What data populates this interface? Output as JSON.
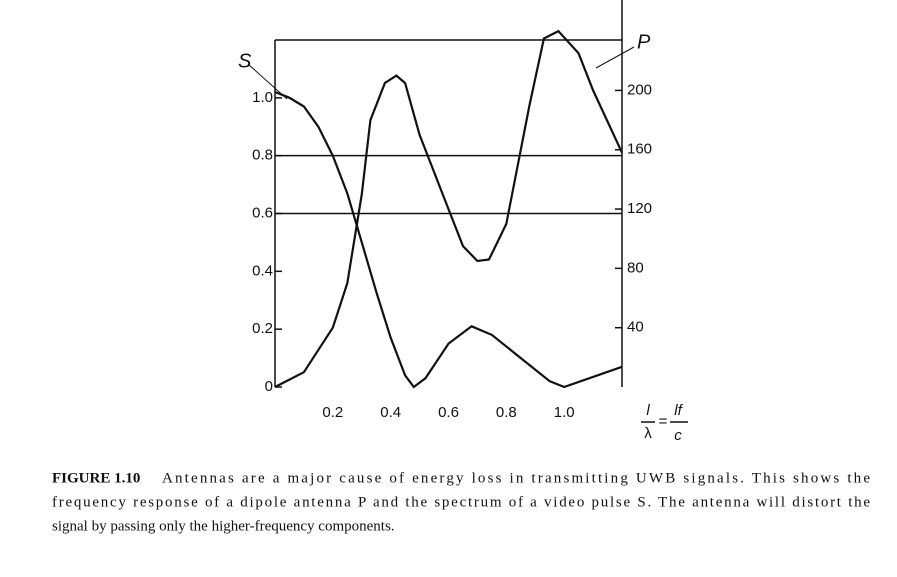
{
  "chart_data": {
    "type": "line",
    "xlim": [
      0,
      1.2
    ],
    "xticks": [
      0.2,
      0.4,
      0.6,
      0.8,
      {
        "value": 1,
        "label": "1.0"
      }
    ],
    "ylim": [
      0,
      1.2
    ],
    "yticks": [
      0,
      0.2,
      0.4,
      0.6,
      0.8,
      {
        "value": 1,
        "label": "1.0"
      }
    ],
    "y2lim": [
      0,
      234
    ],
    "y2ticks": [
      40,
      80,
      120,
      160,
      200
    ],
    "grid_y": [
      0.6,
      0.8
    ],
    "xlabel_parts": [
      "l",
      "λ",
      "=",
      "lf",
      "c"
    ],
    "series": [
      {
        "name": "S",
        "color": "#111111",
        "x": [
          0,
          0.05,
          0.1,
          0.15,
          0.2,
          0.25,
          0.3,
          0.35,
          0.4,
          0.45,
          0.48,
          0.52,
          0.6,
          0.68,
          0.75,
          0.85,
          0.95,
          1.0,
          1.2
        ],
        "values": [
          1.02,
          1.0,
          0.97,
          0.9,
          0.8,
          0.67,
          0.5,
          0.33,
          0.17,
          0.04,
          0.0,
          0.03,
          0.15,
          0.21,
          0.18,
          0.1,
          0.02,
          0.0,
          0.07
        ]
      },
      {
        "name": "P",
        "color": "#111111",
        "axis": "y2",
        "x": [
          0,
          0.1,
          0.2,
          0.25,
          0.3,
          0.33,
          0.38,
          0.42,
          0.45,
          0.5,
          0.6,
          0.65,
          0.7,
          0.74,
          0.8,
          0.88,
          0.93,
          0.98,
          1.05,
          1.1,
          1.2
        ],
        "values": [
          0,
          10,
          40,
          70,
          130,
          180,
          205,
          210,
          205,
          170,
          120,
          95,
          85,
          86,
          110,
          190,
          235,
          240,
          225,
          200,
          158
        ]
      }
    ],
    "caption": {
      "label": "FIGURE 1.10",
      "lines": [
        "Antennas are a major cause of energy loss in transmitting UWB signals. This shows the",
        "frequency response of a dipole antenna P and the spectrum of a video pulse S. The antenna will distort the",
        "signal by passing only the higher-frequency components."
      ]
    }
  }
}
